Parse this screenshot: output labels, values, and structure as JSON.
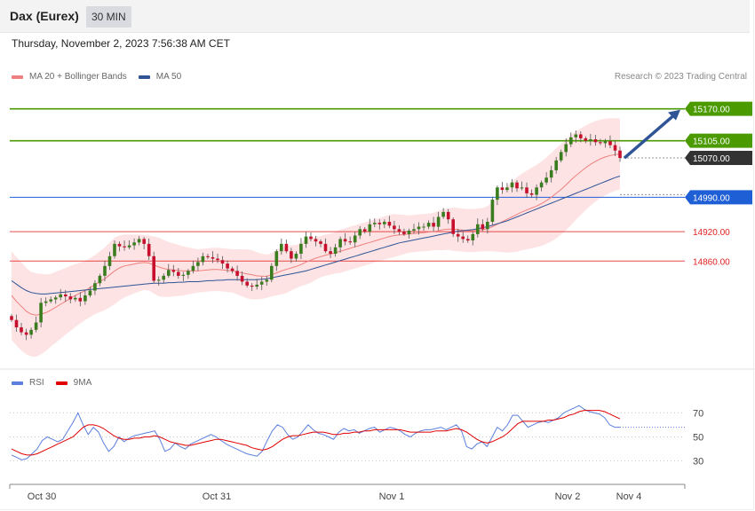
{
  "header": {
    "title": "Dax (Eurex)",
    "interval": "30 MIN"
  },
  "timestamp": "Thursday, November 2, 2023 7:56:38 AM CET",
  "legend": {
    "items": [
      {
        "label": "MA 20 + Bollinger Bands",
        "color": "#f08080"
      },
      {
        "label": "MA 50",
        "color": "#2f5597"
      }
    ]
  },
  "copyright": "Research © 2023 Trading Central",
  "rsi_legend": {
    "items": [
      {
        "label": "RSI",
        "color": "#5b7fdc"
      },
      {
        "label": "9MA",
        "color": "#e00000"
      }
    ]
  },
  "chart_data": [
    {
      "type": "candlestick",
      "ylim": [
        14660,
        15220
      ],
      "levels": [
        {
          "value": 15170.0,
          "label": "15170.00",
          "kind": "resistance",
          "color": "#4a9a00"
        },
        {
          "value": 15105.0,
          "label": "15105.00",
          "kind": "resistance",
          "color": "#4a9a00"
        },
        {
          "value": 15070.0,
          "label": "15070.00",
          "kind": "last",
          "color": "#333333"
        },
        {
          "value": 14990.0,
          "label": "14990.00",
          "kind": "pivot",
          "color": "#1f5fd6"
        },
        {
          "value": 14920.0,
          "label": "14920.00",
          "kind": "support",
          "color": "#e02020"
        },
        {
          "value": 14860.0,
          "label": "14860.00",
          "kind": "support",
          "color": "#e02020"
        }
      ],
      "x_ticks": [
        "Oct 30",
        "Oct 31",
        "Nov 1",
        "Nov 2",
        "Nov 4"
      ],
      "close_series": [
        14740,
        14725,
        14715,
        14710,
        14720,
        14735,
        14775,
        14778,
        14782,
        14786,
        14792,
        14788,
        14782,
        14785,
        14778,
        14790,
        14800,
        14815,
        14830,
        14850,
        14870,
        14895,
        14890,
        14888,
        14892,
        14898,
        14905,
        14895,
        14870,
        14820,
        14822,
        14830,
        14842,
        14838,
        14830,
        14832,
        14840,
        14850,
        14858,
        14870,
        14868,
        14865,
        14862,
        14855,
        14845,
        14840,
        14830,
        14818,
        14810,
        14808,
        14812,
        14818,
        14822,
        14850,
        14880,
        14895,
        14880,
        14865,
        14875,
        14895,
        14910,
        14905,
        14900,
        14895,
        14880,
        14875,
        14888,
        14905,
        14900,
        14898,
        14912,
        14925,
        14920,
        14935,
        14938,
        14935,
        14940,
        14932,
        14925,
        14920,
        14915,
        14922,
        14925,
        14930,
        14930,
        14938,
        14930,
        14950,
        14960,
        14945,
        14915,
        14910,
        14905,
        14902,
        14915,
        14935,
        14925,
        14940,
        14985,
        15010,
        15005,
        15010,
        15020,
        15008,
        15010,
        14998,
        14995,
        15010,
        15020,
        15030,
        15045,
        15065,
        15082,
        15098,
        15112,
        15118,
        15110,
        15105,
        15108,
        15102,
        15100,
        15104,
        15096,
        15085,
        15070
      ],
      "ma20": [
        14790,
        14778,
        14768,
        14758,
        14752,
        14750,
        14752,
        14755,
        14760,
        14766,
        14772,
        14778,
        14784,
        14790,
        14795,
        14800,
        14806,
        14812,
        14818,
        14824,
        14832,
        14840,
        14846,
        14850,
        14852,
        14854,
        14856,
        14857,
        14856,
        14852,
        14848,
        14845,
        14843,
        14842,
        14841,
        14840,
        14840,
        14840,
        14840,
        14841,
        14842,
        14843,
        14843,
        14842,
        14841,
        14840,
        14838,
        14836,
        14834,
        14832,
        14830,
        14829,
        14829,
        14832,
        14836,
        14840,
        14843,
        14846,
        14849,
        14853,
        14858,
        14862,
        14866,
        14869,
        14872,
        14874,
        14877,
        14880,
        14883,
        14886,
        14889,
        14892,
        14895,
        14898,
        14901,
        14904,
        14907,
        14910,
        14912,
        14913,
        14914,
        14915,
        14916,
        14917,
        14918,
        14919,
        14920,
        14922,
        14924,
        14925,
        14925,
        14924,
        14923,
        14922,
        14922,
        14923,
        14924,
        14926,
        14930,
        14935,
        14940,
        14945,
        14950,
        14955,
        14960,
        14964,
        14968,
        14972,
        14977,
        14983,
        14990,
        14998,
        15006,
        15015,
        15025,
        15034,
        15042,
        15050,
        15057,
        15063,
        15068,
        15072,
        15075,
        15077,
        15078
      ],
      "ma50": [
        14820,
        14813,
        14806,
        14800,
        14796,
        14794,
        14793,
        14793,
        14794,
        14795,
        14796,
        14797,
        14798,
        14799,
        14800,
        14801,
        14802,
        14803,
        14804,
        14805,
        14806,
        14807,
        14808,
        14809,
        14810,
        14811,
        14812,
        14813,
        14814,
        14815,
        14815,
        14815,
        14816,
        14816,
        14817,
        14817,
        14818,
        14818,
        14818,
        14819,
        14820,
        14820,
        14821,
        14821,
        14822,
        14822,
        14822,
        14822,
        14822,
        14822,
        14822,
        14823,
        14824,
        14826,
        14828,
        14830,
        14832,
        14834,
        14836,
        14838,
        14840,
        14843,
        14846,
        14849,
        14852,
        14855,
        14858,
        14861,
        14864,
        14867,
        14870,
        14873,
        14876,
        14879,
        14882,
        14885,
        14888,
        14891,
        14894,
        14897,
        14899,
        14901,
        14903,
        14905,
        14907,
        14909,
        14911,
        14913,
        14915,
        14917,
        14919,
        14921,
        14922,
        14923,
        14924,
        14926,
        14928,
        14930,
        14933,
        14936,
        14939,
        14942,
        14946,
        14950,
        14954,
        14958,
        14962,
        14966,
        14970,
        14974,
        14978,
        14982,
        14986,
        14990,
        14994,
        14998,
        15002,
        15006,
        15010,
        15014,
        15018,
        15022,
        15026,
        15030,
        15033
      ],
      "bollinger_width": [
        90,
        90,
        90,
        88,
        86,
        85,
        82,
        78,
        74,
        72,
        70,
        68,
        66,
        64,
        62,
        60,
        60,
        60,
        62,
        64,
        66,
        68,
        66,
        64,
        62,
        60,
        58,
        56,
        56,
        58,
        60,
        58,
        56,
        54,
        52,
        50,
        48,
        46,
        44,
        44,
        44,
        44,
        44,
        44,
        44,
        44,
        46,
        48,
        50,
        50,
        48,
        46,
        44,
        44,
        46,
        48,
        48,
        46,
        44,
        44,
        46,
        46,
        44,
        42,
        42,
        42,
        42,
        44,
        44,
        44,
        44,
        44,
        44,
        44,
        44,
        44,
        44,
        44,
        44,
        42,
        40,
        38,
        38,
        38,
        38,
        38,
        38,
        40,
        42,
        42,
        44,
        44,
        44,
        44,
        44,
        44,
        44,
        46,
        50,
        56,
        62,
        68,
        72,
        76,
        78,
        80,
        82,
        84,
        86,
        88,
        90,
        92,
        92,
        92,
        92,
        90,
        88,
        86,
        84,
        82,
        80,
        78,
        76,
        74,
        72
      ]
    },
    {
      "type": "line",
      "ylim": [
        15,
        85
      ],
      "y_ticks": [
        70,
        50,
        30
      ],
      "series": [
        {
          "name": "RSI",
          "color": "#5b7fdc",
          "values": [
            35,
            33,
            31,
            32,
            36,
            40,
            47,
            50,
            48,
            46,
            48,
            55,
            62,
            70,
            60,
            52,
            58,
            54,
            45,
            38,
            42,
            50,
            46,
            49,
            51,
            52,
            53,
            54,
            55,
            48,
            38,
            40,
            45,
            42,
            40,
            44,
            46,
            48,
            50,
            52,
            50,
            47,
            44,
            42,
            40,
            38,
            36,
            35,
            34,
            38,
            47,
            55,
            60,
            58,
            52,
            48,
            50,
            55,
            60,
            56,
            53,
            52,
            50,
            48,
            54,
            57,
            55,
            56,
            53,
            55,
            57,
            58,
            54,
            56,
            58,
            57,
            55,
            52,
            50,
            53,
            55,
            56,
            56,
            57,
            58,
            56,
            58,
            60,
            55,
            42,
            40,
            44,
            46,
            42,
            50,
            58,
            55,
            60,
            68,
            68,
            63,
            58,
            60,
            62,
            63,
            62,
            64,
            66,
            70,
            72,
            74,
            76,
            73,
            71,
            70,
            69,
            66,
            60,
            58,
            58
          ]
        },
        {
          "name": "9MA",
          "color": "#e00000",
          "values": [
            40,
            38,
            36,
            35,
            35,
            36,
            38,
            40,
            42,
            44,
            46,
            48,
            50,
            54,
            58,
            60,
            60,
            59,
            57,
            54,
            51,
            49,
            48,
            48,
            49,
            49,
            50,
            50,
            51,
            50,
            48,
            46,
            45,
            44,
            43,
            43,
            44,
            45,
            46,
            47,
            48,
            48,
            47,
            46,
            45,
            44,
            43,
            41,
            40,
            39,
            40,
            42,
            45,
            48,
            50,
            51,
            51,
            52,
            53,
            54,
            54,
            54,
            53,
            52,
            52,
            53,
            53,
            54,
            54,
            55,
            55,
            56,
            56,
            56,
            56,
            56,
            56,
            55,
            54,
            54,
            54,
            54,
            54,
            55,
            55,
            55,
            56,
            57,
            56,
            54,
            51,
            48,
            46,
            45,
            46,
            48,
            50,
            53,
            57,
            61,
            63,
            63,
            63,
            63,
            63,
            64,
            64,
            65,
            66,
            68,
            69,
            71,
            72,
            72,
            72,
            72,
            71,
            69,
            67,
            65
          ]
        }
      ]
    }
  ]
}
